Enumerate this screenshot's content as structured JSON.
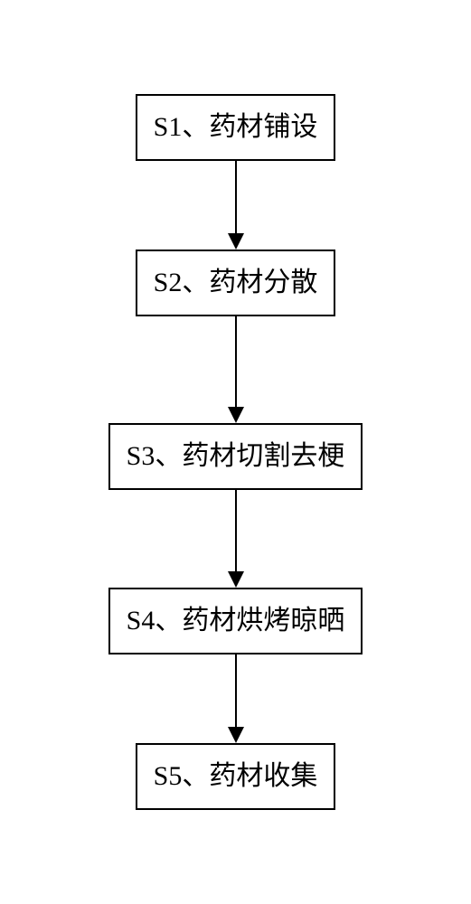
{
  "flowchart": {
    "type": "flowchart",
    "direction": "vertical",
    "box_border_color": "#000000",
    "box_border_width": 2,
    "box_background_color": "#ffffff",
    "text_color": "#000000",
    "font_size": 30,
    "font_family": "SimSun",
    "arrow_color": "#000000",
    "arrow_line_width": 2,
    "arrow_head_size": 18,
    "background_color": "#ffffff",
    "steps": [
      {
        "id": "s1",
        "label": "S1、药材铺设",
        "arrow_length": 80
      },
      {
        "id": "s2",
        "label": "S2、药材分散",
        "arrow_length": 100
      },
      {
        "id": "s3",
        "label": "S3、药材切割去梗",
        "arrow_length": 90
      },
      {
        "id": "s4",
        "label": "S4、药材烘烤晾晒",
        "arrow_length": 80
      },
      {
        "id": "s5",
        "label": "S5、药材收集",
        "arrow_length": 0
      }
    ]
  }
}
